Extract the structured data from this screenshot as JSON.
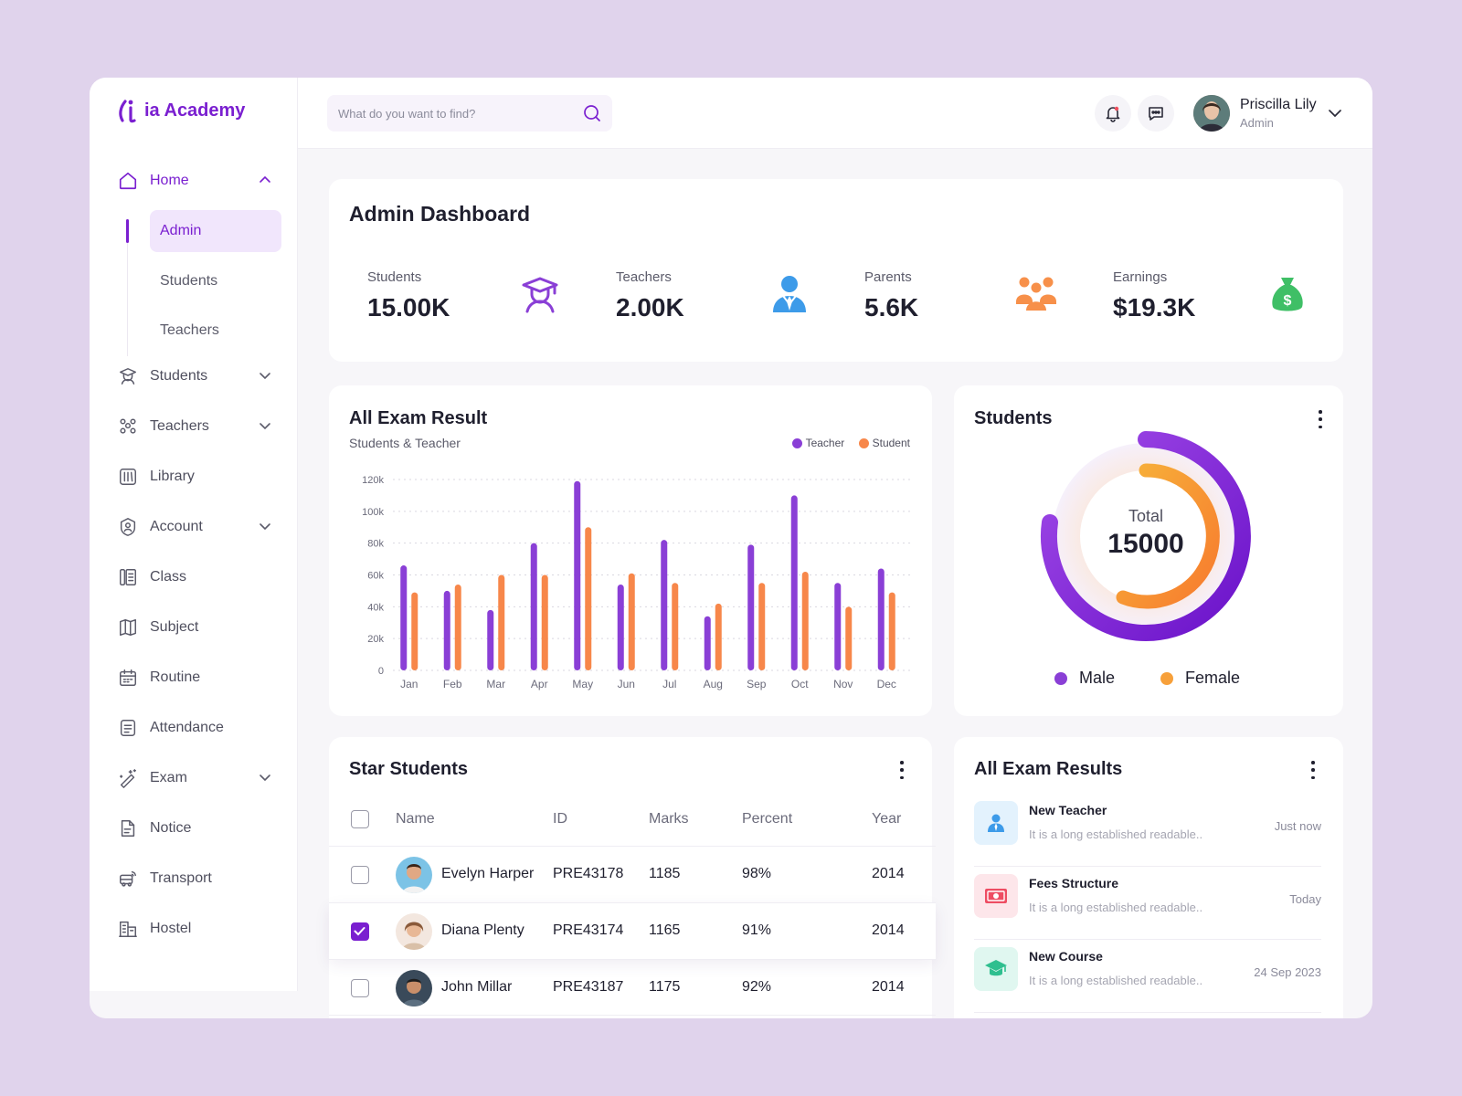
{
  "brand": {
    "name": "ia Academy"
  },
  "sidebar": {
    "home": {
      "label": "Home",
      "icon": "home-icon"
    },
    "home_sub": [
      "Admin",
      "Students",
      "Teachers"
    ],
    "items": [
      {
        "label": "Students",
        "icon": "student-icon",
        "expandable": true
      },
      {
        "label": "Teachers",
        "icon": "teachers-icon",
        "expandable": true
      },
      {
        "label": "Library",
        "icon": "library-icon",
        "expandable": false
      },
      {
        "label": "Account",
        "icon": "account-icon",
        "expandable": true
      },
      {
        "label": "Class",
        "icon": "class-icon",
        "expandable": false
      },
      {
        "label": "Subject",
        "icon": "subject-icon",
        "expandable": false
      },
      {
        "label": "Routine",
        "icon": "calendar-icon",
        "expandable": false
      },
      {
        "label": "Attendance",
        "icon": "attendance-icon",
        "expandable": false
      },
      {
        "label": "Exam",
        "icon": "exam-icon",
        "expandable": true
      },
      {
        "label": "Notice",
        "icon": "notice-icon",
        "expandable": false
      },
      {
        "label": "Transport",
        "icon": "bus-icon",
        "expandable": false
      },
      {
        "label": "Hostel",
        "icon": "hostel-icon",
        "expandable": false
      }
    ]
  },
  "topbar": {
    "search_placeholder": "What do you want to find?",
    "user": {
      "name": "Priscilla Lily",
      "role": "Admin"
    }
  },
  "dashboard": {
    "title": "Admin Dashboard",
    "stats": [
      {
        "label": "Students",
        "value": "15.00K",
        "bg": "#efe4fd",
        "accent": "#8a3fd6"
      },
      {
        "label": "Teachers",
        "value": "2.00K",
        "bg": "#e3f2fd",
        "accent": "#3d9be9"
      },
      {
        "label": "Parents",
        "value": "5.6K",
        "bg": "#fdeade",
        "accent": "#f7904a"
      },
      {
        "label": "Earnings",
        "value": "$19.3K",
        "bg": "#e3f7e8",
        "accent": "#3fbf66"
      }
    ]
  },
  "exam_chart": {
    "title": "All Exam Result",
    "subtitle": "Students & Teacher",
    "legend": [
      "Teacher",
      "Student"
    ]
  },
  "chart_data": {
    "type": "bar",
    "categories": [
      "Jan",
      "Feb",
      "Mar",
      "Apr",
      "May",
      "Jun",
      "Jul",
      "Aug",
      "Sep",
      "Oct",
      "Nov",
      "Dec"
    ],
    "series": [
      {
        "name": "Teacher",
        "color": "#8a3fd6",
        "values": [
          66000,
          50000,
          38000,
          80000,
          119000,
          54000,
          82000,
          34000,
          79000,
          110000,
          55000,
          64000
        ]
      },
      {
        "name": "Student",
        "color": "#f7874a",
        "values": [
          49000,
          54000,
          60000,
          60000,
          90000,
          61000,
          55000,
          42000,
          55000,
          62000,
          40000,
          49000
        ]
      }
    ],
    "yticks": [
      "0",
      "20k",
      "40k",
      "60k",
      "80k",
      "100k",
      "120k"
    ],
    "ylim": [
      0,
      120000
    ],
    "grid": true,
    "legend_position": "top-right"
  },
  "students_donut": {
    "title": "Students",
    "center_label": "Total",
    "center_value": "15000",
    "legend": [
      {
        "label": "Male",
        "color": "#8a3fd6"
      },
      {
        "label": "Female",
        "color": "#f7a03a"
      }
    ]
  },
  "star_students": {
    "title": "Star Students",
    "columns": [
      "Name",
      "ID",
      "Marks",
      "Percent",
      "Year"
    ],
    "rows": [
      {
        "name": "Evelyn Harper",
        "id": "PRE43178",
        "marks": "1185",
        "percent": "98%",
        "year": "2014",
        "checked": false
      },
      {
        "name": "Diana Plenty",
        "id": "PRE43174",
        "marks": "1165",
        "percent": "91%",
        "year": "2014",
        "checked": true
      },
      {
        "name": "John Millar",
        "id": "PRE43187",
        "marks": "1175",
        "percent": "92%",
        "year": "2014",
        "checked": false
      }
    ]
  },
  "exam_results": {
    "title": "All Exam Results",
    "items": [
      {
        "title": "New Teacher",
        "desc": "It is a long established readable..",
        "time": "Just now",
        "icon": "teacher-icon",
        "bg": "#e3f2fd"
      },
      {
        "title": "Fees Structure",
        "desc": "It is a long established readable..",
        "time": "Today",
        "icon": "money-icon",
        "bg": "#fde6ea"
      },
      {
        "title": "New Course",
        "desc": "It is a long established readable..",
        "time": "24 Sep 2023",
        "icon": "graduation-cap-icon",
        "bg": "#e0f7f0"
      }
    ]
  }
}
